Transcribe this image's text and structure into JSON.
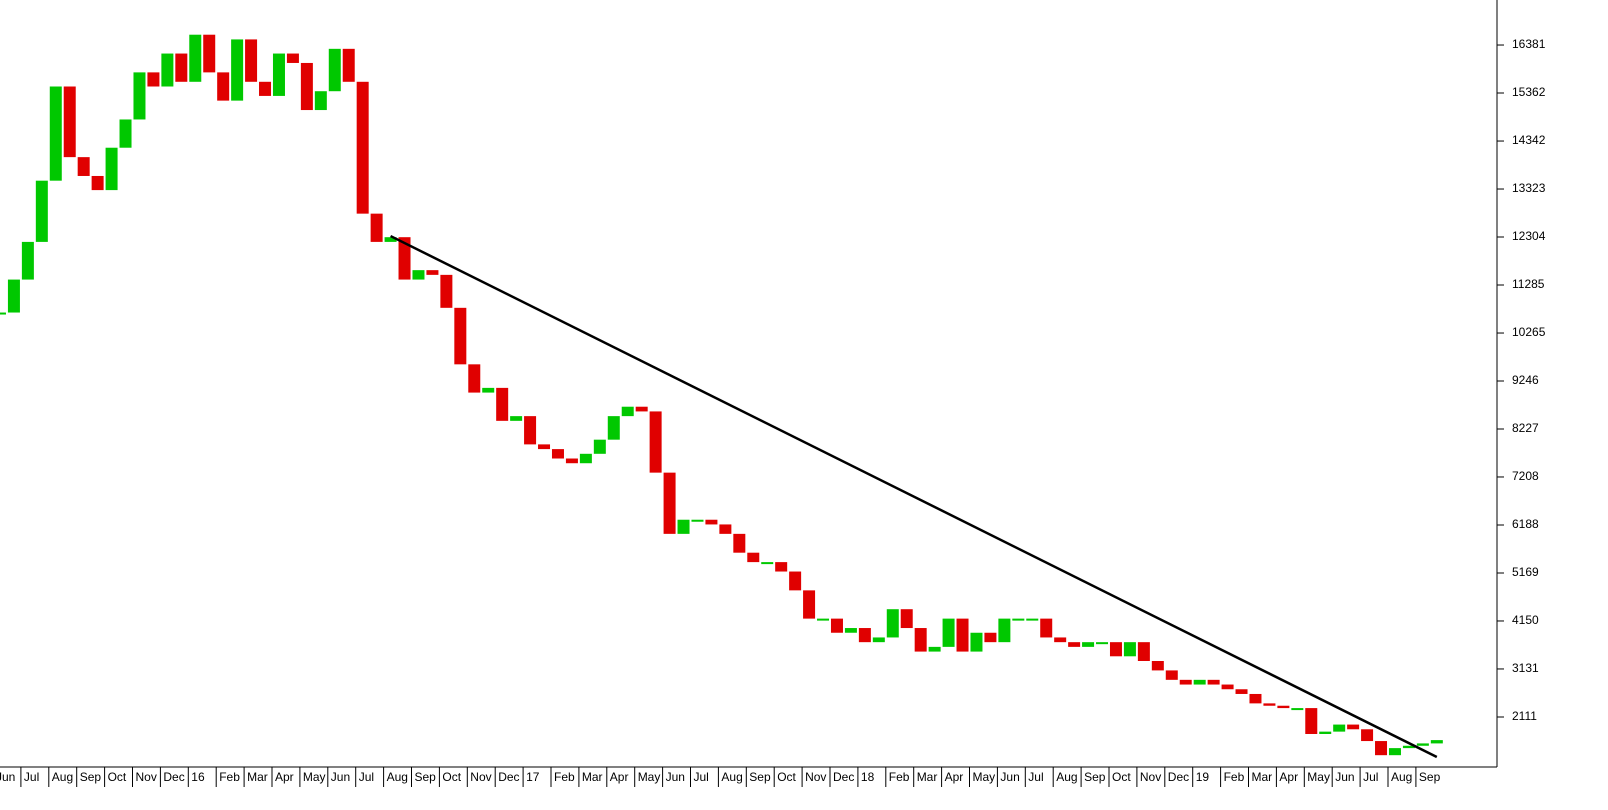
{
  "chart_data": {
    "type": "candlestick",
    "categories": [
      "Jun",
      null,
      "Jul",
      null,
      "Aug",
      null,
      "Sep",
      null,
      "Oct",
      null,
      "Nov",
      null,
      "Dec",
      null,
      "16",
      null,
      "Feb",
      null,
      "Mar",
      null,
      "Apr",
      null,
      "May",
      null,
      "Jun",
      null,
      "Jul",
      null,
      "Aug",
      null,
      "Sep",
      null,
      "Oct",
      null,
      "Nov",
      null,
      "Dec",
      null,
      "17",
      null,
      "Feb",
      null,
      "Mar",
      null,
      "Apr",
      null,
      "May",
      null,
      "Jun",
      null,
      "Jul",
      null,
      "Aug",
      null,
      "Sep",
      null,
      "Oct",
      null,
      "Nov",
      null,
      "Dec",
      null,
      "18",
      null,
      "Feb",
      null,
      "Mar",
      null,
      "Apr",
      null,
      "May",
      null,
      "Jun",
      null,
      "Jul",
      null,
      "Aug",
      null,
      "Sep",
      null,
      "Oct",
      null,
      "Nov",
      null,
      "Dec",
      null,
      "19",
      null,
      "Feb",
      null,
      "Mar",
      null,
      "Apr",
      null,
      "May",
      null,
      "Jun",
      null,
      "Jul",
      null,
      "Aug",
      null,
      "Sep",
      null
    ],
    "values": [
      10700,
      11400,
      12200,
      13500,
      15500,
      14000,
      13600,
      13300,
      14200,
      14800,
      15800,
      15500,
      16200,
      15600,
      16600,
      15800,
      15200,
      16500,
      15600,
      15300,
      16200,
      16000,
      15000,
      15400,
      16300,
      15600,
      12800,
      12200,
      12300,
      11400,
      11600,
      11500,
      10800,
      9600,
      9000,
      9100,
      8400,
      8500,
      7900,
      7800,
      7600,
      7500,
      7700,
      8000,
      8500,
      8700,
      8600,
      7300,
      6000,
      6300,
      6300,
      6200,
      6000,
      5600,
      5400,
      5400,
      5200,
      4800,
      4200,
      4200,
      3900,
      4000,
      3700,
      3800,
      4400,
      4000,
      3500,
      3600,
      4200,
      3500,
      3900,
      3700,
      4200,
      4200,
      4200,
      3800,
      3700,
      3600,
      3700,
      3700,
      3400,
      3700,
      3300,
      3100,
      2900,
      2800,
      2900,
      2800,
      2700,
      2600,
      2400,
      2350,
      2300,
      2300,
      1750,
      1800,
      1950,
      1850,
      1600,
      1300,
      1450,
      1500,
      1550,
      1620
    ],
    "trendline": {
      "color": "#000000",
      "values": [
        null,
        null,
        null,
        null,
        null,
        null,
        null,
        null,
        null,
        null,
        null,
        null,
        null,
        null,
        null,
        null,
        null,
        null,
        null,
        null,
        null,
        null,
        null,
        null,
        null,
        null,
        null,
        null,
        12324,
        null,
        null,
        null,
        null,
        null,
        null,
        null,
        null,
        null,
        null,
        null,
        null,
        null,
        null,
        null,
        null,
        null,
        null,
        null,
        null,
        null,
        null,
        null,
        null,
        null,
        null,
        null,
        null,
        null,
        null,
        null,
        null,
        null,
        null,
        null,
        null,
        null,
        null,
        null,
        null,
        null,
        null,
        null,
        null,
        null,
        null,
        null,
        null,
        null,
        null,
        null,
        null,
        null,
        null,
        null,
        null,
        null,
        null,
        null,
        null,
        null,
        null,
        null,
        null,
        null,
        null,
        null,
        null,
        null,
        null,
        null,
        null,
        null,
        null,
        1261
      ]
    },
    "up_color": "#00c800",
    "down_color": "#e00000",
    "ylim": [
      1049,
      17337
    ],
    "yticks": [
      2111,
      3131,
      4150,
      5169,
      6188,
      7208,
      8227,
      9246,
      10265,
      11285,
      12304,
      13323,
      14342,
      15362,
      16381
    ]
  }
}
